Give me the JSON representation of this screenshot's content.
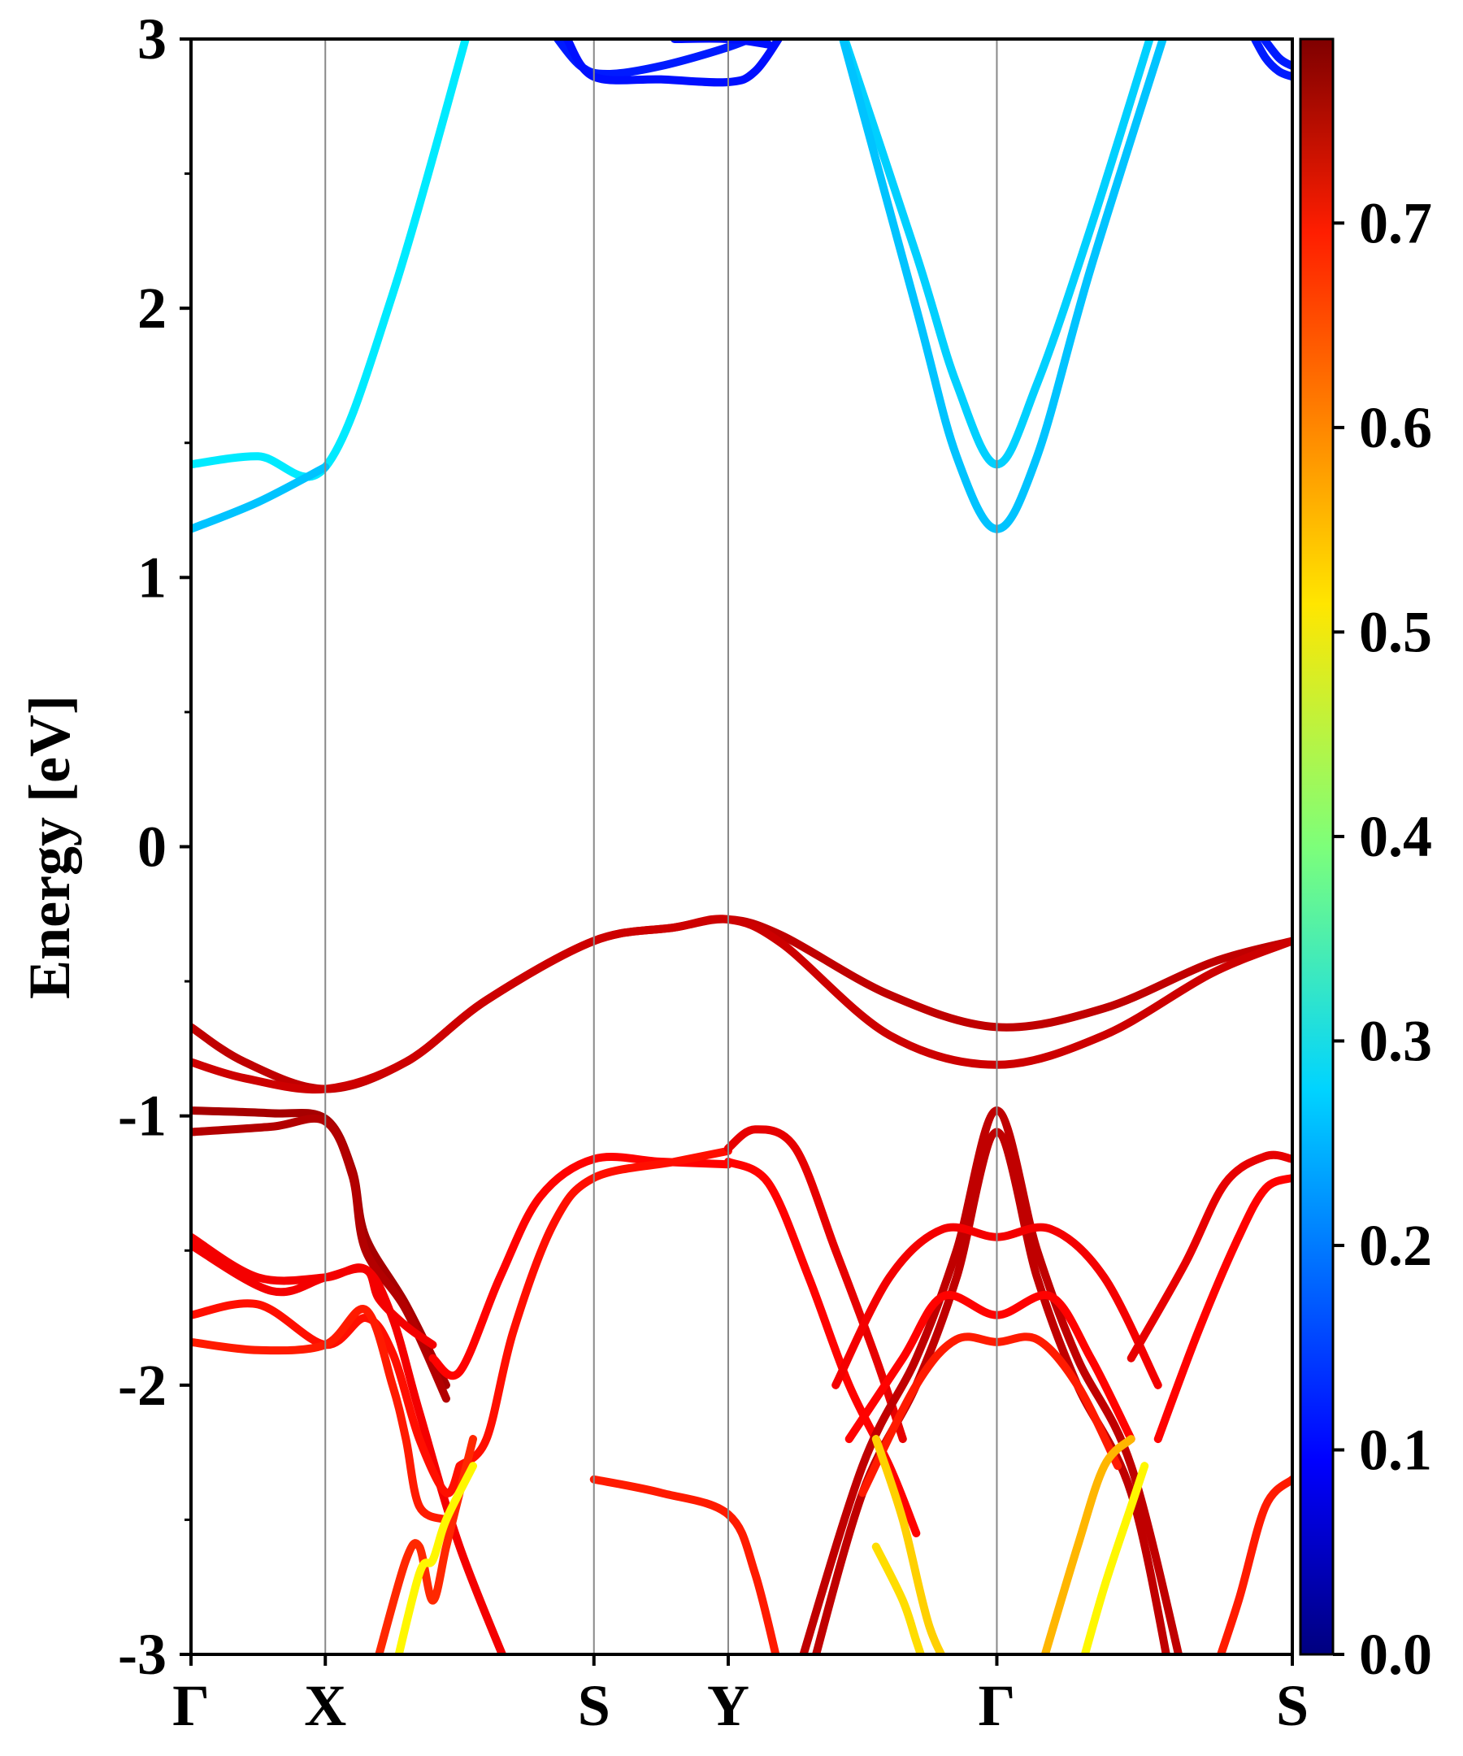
{
  "chart_data": {
    "type": "line",
    "title": "",
    "xlabel": "",
    "ylabel": "Energy [eV]",
    "ylim": [
      -3,
      3
    ],
    "yticks": [
      -3,
      -2,
      -1,
      0,
      1,
      2,
      3
    ],
    "grid": false,
    "kpath": [
      {
        "label": "Γ",
        "x": 0
      },
      {
        "label": "X",
        "x": 0.5
      },
      {
        "label": "S",
        "x": 1.5
      },
      {
        "label": "Y",
        "x": 2.0
      },
      {
        "label": "Γ",
        "x": 3.0
      },
      {
        "label": "S",
        "x": 4.1
      }
    ],
    "colorbar": {
      "range": [
        0.0,
        0.79
      ],
      "ticks": [
        "0.0",
        "0.1",
        "0.2",
        "0.3",
        "0.4",
        "0.5",
        "0.6",
        "0.7"
      ],
      "colormap": "jet"
    },
    "series": [
      {
        "kind": "conduction",
        "weight": 0.28,
        "points": [
          [
            0,
            1.42
          ],
          [
            0.25,
            1.45
          ],
          [
            0.5,
            1.41
          ],
          [
            0.75,
            2.05
          ],
          [
            1.05,
            3.1
          ]
        ]
      },
      {
        "kind": "conduction",
        "weight": 0.25,
        "points": [
          [
            0,
            1.18
          ],
          [
            0.25,
            1.28
          ],
          [
            0.5,
            1.41
          ]
        ]
      },
      {
        "kind": "conduction",
        "weight": 0.26,
        "points": [
          [
            2.4,
            3.1
          ],
          [
            2.7,
            2.2
          ],
          [
            2.85,
            1.72
          ],
          [
            3.0,
            1.42
          ],
          [
            3.15,
            1.72
          ],
          [
            3.35,
            2.3
          ],
          [
            3.6,
            3.1
          ]
        ]
      },
      {
        "kind": "conduction",
        "weight": 0.25,
        "points": [
          [
            2.4,
            3.1
          ],
          [
            2.7,
            2.0
          ],
          [
            2.85,
            1.45
          ],
          [
            3.0,
            1.18
          ],
          [
            3.15,
            1.45
          ],
          [
            3.35,
            2.15
          ],
          [
            3.65,
            3.1
          ]
        ]
      },
      {
        "kind": "conduction",
        "weight": 0.12,
        "points": [
          [
            1.35,
            3.02
          ],
          [
            1.45,
            2.9
          ],
          [
            1.55,
            2.87
          ],
          [
            1.75,
            2.9
          ],
          [
            2.0,
            2.97
          ],
          [
            2.15,
            3.03
          ]
        ]
      },
      {
        "kind": "conduction",
        "weight": 0.11,
        "points": [
          [
            1.4,
            3.0
          ],
          [
            1.5,
            2.86
          ],
          [
            1.75,
            2.85
          ],
          [
            2.0,
            2.84
          ],
          [
            2.1,
            2.88
          ],
          [
            2.2,
            3.02
          ]
        ]
      },
      {
        "kind": "conduction",
        "weight": 0.11,
        "points": [
          [
            1.8,
            3.0
          ],
          [
            2.0,
            3.0
          ],
          [
            2.15,
            2.98
          ]
        ]
      },
      {
        "kind": "conduction",
        "weight": 0.12,
        "points": [
          [
            3.95,
            3.02
          ],
          [
            4.0,
            2.93
          ],
          [
            4.05,
            2.88
          ],
          [
            4.1,
            2.86
          ]
        ]
      },
      {
        "kind": "conduction",
        "weight": 0.12,
        "points": [
          [
            3.98,
            3.02
          ],
          [
            4.05,
            2.93
          ],
          [
            4.1,
            2.9
          ]
        ]
      },
      {
        "kind": "valence",
        "weight": 0.74,
        "points": [
          [
            0,
            -0.67
          ],
          [
            0.2,
            -0.8
          ],
          [
            0.5,
            -0.9
          ],
          [
            0.8,
            -0.8
          ],
          [
            1.1,
            -0.57
          ],
          [
            1.5,
            -0.35
          ],
          [
            1.8,
            -0.3
          ],
          [
            2.0,
            -0.27
          ],
          [
            2.2,
            -0.33
          ],
          [
            2.6,
            -0.55
          ],
          [
            3.0,
            -0.67
          ],
          [
            3.4,
            -0.6
          ],
          [
            3.8,
            -0.43
          ],
          [
            4.1,
            -0.35
          ]
        ]
      },
      {
        "kind": "valence",
        "weight": 0.73,
        "points": [
          [
            0,
            -0.8
          ],
          [
            0.2,
            -0.86
          ],
          [
            0.5,
            -0.9
          ],
          [
            0.8,
            -0.8
          ],
          [
            1.1,
            -0.57
          ],
          [
            1.5,
            -0.35
          ],
          [
            1.8,
            -0.3
          ],
          [
            2.0,
            -0.27
          ],
          [
            2.2,
            -0.36
          ],
          [
            2.6,
            -0.7
          ],
          [
            3.0,
            -0.81
          ],
          [
            3.4,
            -0.7
          ],
          [
            3.8,
            -0.47
          ],
          [
            4.1,
            -0.35
          ]
        ]
      },
      {
        "kind": "valence",
        "weight": 0.76,
        "points": [
          [
            0,
            -0.98
          ],
          [
            0.3,
            -0.99
          ],
          [
            0.5,
            -1.01
          ],
          [
            0.6,
            -1.2
          ],
          [
            0.65,
            -1.45
          ],
          [
            0.8,
            -1.7
          ],
          [
            0.95,
            -2.0
          ]
        ]
      },
      {
        "kind": "valence",
        "weight": 0.75,
        "points": [
          [
            0,
            -1.06
          ],
          [
            0.3,
            -1.04
          ],
          [
            0.5,
            -1.02
          ],
          [
            0.6,
            -1.22
          ],
          [
            0.65,
            -1.5
          ],
          [
            0.8,
            -1.72
          ],
          [
            0.95,
            -2.05
          ]
        ]
      },
      {
        "kind": "valence",
        "weight": 0.7,
        "points": [
          [
            0,
            -1.45
          ],
          [
            0.25,
            -1.6
          ],
          [
            0.5,
            -1.6
          ],
          [
            0.65,
            -1.57
          ],
          [
            0.75,
            -1.75
          ],
          [
            0.85,
            -2.1
          ],
          [
            1.0,
            -2.6
          ],
          [
            1.2,
            -3.1
          ]
        ]
      },
      {
        "kind": "valence",
        "weight": 0.7,
        "points": [
          [
            0,
            -1.48
          ],
          [
            0.3,
            -1.65
          ],
          [
            0.5,
            -1.6
          ],
          [
            0.65,
            -1.57
          ],
          [
            0.7,
            -1.68
          ],
          [
            0.8,
            -1.78
          ],
          [
            0.9,
            -1.85
          ]
        ]
      },
      {
        "kind": "valence",
        "weight": 0.68,
        "points": [
          [
            0,
            -1.74
          ],
          [
            0.25,
            -1.7
          ],
          [
            0.5,
            -1.85
          ],
          [
            0.65,
            -1.75
          ],
          [
            0.75,
            -1.88
          ],
          [
            0.85,
            -2.2
          ],
          [
            0.95,
            -2.4
          ],
          [
            1.0,
            -2.3
          ]
        ]
      },
      {
        "kind": "valence",
        "weight": 0.67,
        "points": [
          [
            0,
            -1.84
          ],
          [
            0.25,
            -1.87
          ],
          [
            0.5,
            -1.85
          ],
          [
            0.65,
            -1.72
          ],
          [
            0.75,
            -2.0
          ],
          [
            0.8,
            -2.2
          ],
          [
            0.85,
            -2.45
          ],
          [
            0.95,
            -2.5
          ]
        ]
      },
      {
        "kind": "valence",
        "weight": 0.69,
        "points": [
          [
            0.9,
            -1.9
          ],
          [
            1.0,
            -1.95
          ],
          [
            1.15,
            -1.6
          ],
          [
            1.3,
            -1.3
          ],
          [
            1.5,
            -1.16
          ],
          [
            1.75,
            -1.17
          ],
          [
            2.0,
            -1.18
          ]
        ]
      },
      {
        "kind": "valence",
        "weight": 0.68,
        "points": [
          [
            1.0,
            -2.3
          ],
          [
            1.1,
            -2.2
          ],
          [
            1.2,
            -1.8
          ],
          [
            1.35,
            -1.4
          ],
          [
            1.5,
            -1.23
          ],
          [
            1.8,
            -1.17
          ],
          [
            2.0,
            -1.13
          ]
        ]
      },
      {
        "kind": "valence",
        "weight": 0.71,
        "points": [
          [
            2.0,
            -1.12
          ],
          [
            2.1,
            -1.05
          ],
          [
            2.25,
            -1.12
          ],
          [
            2.4,
            -1.5
          ],
          [
            2.55,
            -1.9
          ],
          [
            2.65,
            -2.2
          ]
        ]
      },
      {
        "kind": "valence",
        "weight": 0.69,
        "points": [
          [
            2.0,
            -1.17
          ],
          [
            2.15,
            -1.25
          ],
          [
            2.3,
            -1.6
          ],
          [
            2.45,
            -2.0
          ],
          [
            2.6,
            -2.3
          ],
          [
            2.7,
            -2.55
          ]
        ]
      },
      {
        "kind": "valence",
        "weight": 0.66,
        "points": [
          [
            0.7,
            -3.0
          ],
          [
            0.8,
            -2.65
          ],
          [
            0.85,
            -2.6
          ],
          [
            0.9,
            -2.8
          ],
          [
            0.95,
            -2.6
          ],
          [
            1.0,
            -2.4
          ],
          [
            1.05,
            -2.2
          ]
        ]
      },
      {
        "kind": "valence",
        "weight": 0.67,
        "points": [
          [
            1.5,
            -2.35
          ],
          [
            1.75,
            -2.4
          ],
          [
            2.0,
            -2.48
          ],
          [
            2.1,
            -2.7
          ],
          [
            2.2,
            -3.1
          ]
        ]
      },
      {
        "kind": "valence",
        "weight": 0.74,
        "points": [
          [
            2.25,
            -3.1
          ],
          [
            2.5,
            -2.3
          ],
          [
            2.7,
            -1.9
          ],
          [
            2.85,
            -1.5
          ],
          [
            3.0,
            -0.98
          ],
          [
            3.15,
            -1.5
          ],
          [
            3.3,
            -1.9
          ],
          [
            3.5,
            -2.3
          ],
          [
            3.7,
            -3.1
          ]
        ]
      },
      {
        "kind": "valence",
        "weight": 0.74,
        "points": [
          [
            2.3,
            -3.1
          ],
          [
            2.5,
            -2.4
          ],
          [
            2.7,
            -2.0
          ],
          [
            2.85,
            -1.6
          ],
          [
            3.0,
            -1.06
          ],
          [
            3.15,
            -1.6
          ],
          [
            3.3,
            -2.0
          ],
          [
            3.5,
            -2.4
          ],
          [
            3.65,
            -3.1
          ]
        ]
      },
      {
        "kind": "valence",
        "weight": 0.7,
        "points": [
          [
            2.4,
            -2.0
          ],
          [
            2.6,
            -1.6
          ],
          [
            2.8,
            -1.42
          ],
          [
            3.0,
            -1.45
          ],
          [
            3.2,
            -1.42
          ],
          [
            3.4,
            -1.6
          ],
          [
            3.6,
            -2.0
          ]
        ]
      },
      {
        "kind": "valence",
        "weight": 0.69,
        "points": [
          [
            2.45,
            -2.2
          ],
          [
            2.65,
            -1.9
          ],
          [
            2.8,
            -1.67
          ],
          [
            3.0,
            -1.74
          ],
          [
            3.2,
            -1.67
          ],
          [
            3.35,
            -1.9
          ],
          [
            3.5,
            -2.2
          ]
        ]
      },
      {
        "kind": "valence",
        "weight": 0.67,
        "points": [
          [
            2.5,
            -2.4
          ],
          [
            2.7,
            -2.0
          ],
          [
            2.85,
            -1.83
          ],
          [
            3.0,
            -1.84
          ],
          [
            3.15,
            -1.83
          ],
          [
            3.3,
            -2.0
          ],
          [
            3.45,
            -2.3
          ]
        ]
      },
      {
        "kind": "valence",
        "weight": 0.71,
        "points": [
          [
            3.5,
            -1.9
          ],
          [
            3.7,
            -1.55
          ],
          [
            3.85,
            -1.25
          ],
          [
            4.0,
            -1.15
          ],
          [
            4.1,
            -1.16
          ]
        ]
      },
      {
        "kind": "valence",
        "weight": 0.69,
        "points": [
          [
            3.6,
            -2.2
          ],
          [
            3.75,
            -1.8
          ],
          [
            3.9,
            -1.45
          ],
          [
            4.0,
            -1.27
          ],
          [
            4.1,
            -1.23
          ]
        ]
      },
      {
        "kind": "valence",
        "weight": 0.67,
        "points": [
          [
            3.8,
            -3.1
          ],
          [
            3.9,
            -2.8
          ],
          [
            4.0,
            -2.45
          ],
          [
            4.1,
            -2.35
          ]
        ]
      },
      {
        "kind": "valence",
        "weight": 0.53,
        "points": [
          [
            2.55,
            -2.2
          ],
          [
            2.65,
            -2.5
          ],
          [
            2.75,
            -2.9
          ],
          [
            2.85,
            -3.1
          ]
        ]
      },
      {
        "kind": "valence",
        "weight": 0.55,
        "points": [
          [
            3.15,
            -3.1
          ],
          [
            3.3,
            -2.6
          ],
          [
            3.4,
            -2.3
          ],
          [
            3.5,
            -2.2
          ]
        ]
      },
      {
        "kind": "valence",
        "weight": 0.52,
        "points": [
          [
            2.55,
            -2.6
          ],
          [
            2.65,
            -2.8
          ],
          [
            2.7,
            -2.95
          ],
          [
            2.75,
            -3.1
          ]
        ]
      },
      {
        "kind": "valence",
        "weight": 0.5,
        "points": [
          [
            3.3,
            -3.1
          ],
          [
            3.4,
            -2.75
          ],
          [
            3.5,
            -2.45
          ],
          [
            3.55,
            -2.3
          ]
        ]
      },
      {
        "kind": "valence",
        "weight": 0.5,
        "points": [
          [
            0.75,
            -3.1
          ],
          [
            0.85,
            -2.7
          ],
          [
            0.9,
            -2.65
          ],
          [
            0.95,
            -2.5
          ],
          [
            1.05,
            -2.3
          ]
        ]
      }
    ]
  }
}
